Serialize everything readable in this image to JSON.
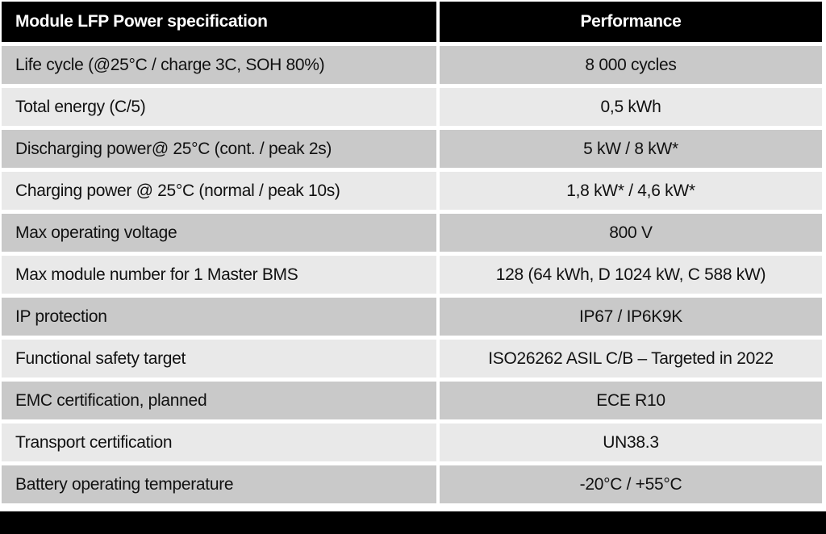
{
  "header": {
    "spec_column": "Module LFP Power specification",
    "performance_column": "Performance"
  },
  "rows": [
    {
      "spec": "Life cycle (@25°C / charge 3C, SOH 80%)",
      "value": "8 000 cycles"
    },
    {
      "spec": "Total energy (C/5)",
      "value": "0,5 kWh"
    },
    {
      "spec": "Discharging power@ 25°C (cont. / peak 2s)",
      "value": "5 kW / 8 kW*"
    },
    {
      "spec": "Charging power @ 25°C (normal / peak 10s)",
      "value": "1,8 kW* / 4,6 kW*"
    },
    {
      "spec": "Max operating voltage",
      "value": "800 V"
    },
    {
      "spec": "Max module number for 1 Master BMS",
      "value": "128 (64 kWh, D 1024 kW, C 588 kW)"
    },
    {
      "spec": "IP protection",
      "value": "IP67 / IP6K9K"
    },
    {
      "spec": "Functional safety target",
      "value": "ISO26262 ASIL C/B – Targeted in 2022"
    },
    {
      "spec": "EMC certification, planned",
      "value": "ECE R10"
    },
    {
      "spec": "Transport certification",
      "value": "UN38.3"
    },
    {
      "spec": "Battery operating temperature",
      "value": "-20°C / +55°C"
    }
  ],
  "colors": {
    "header_bg": "#000000",
    "header_text": "#ffffff",
    "row_dark": "#c9c9c9",
    "row_light": "#e9e9e9",
    "body_text": "#111111",
    "footer_bg": "#000000",
    "gap": "#ffffff"
  }
}
